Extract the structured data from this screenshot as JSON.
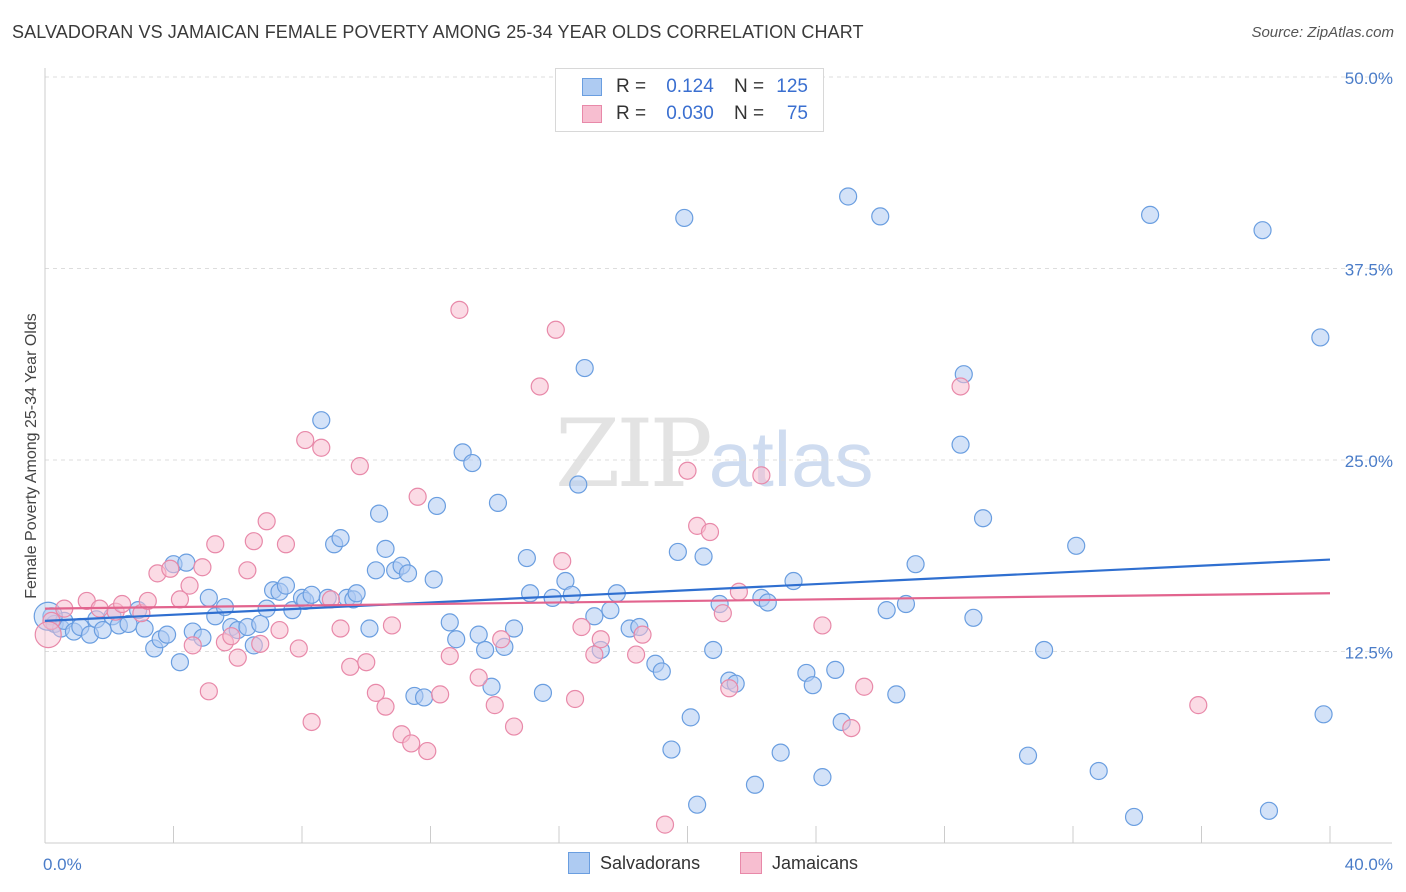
{
  "title": "SALVADORAN VS JAMAICAN FEMALE POVERTY AMONG 25-34 YEAR OLDS CORRELATION CHART",
  "source": "Source: ZipAtlas.com",
  "watermark": {
    "zip": "ZIP",
    "atlas": "atlas"
  },
  "legend": {
    "rows": [
      {
        "r_label": "R =",
        "r_value": "0.124",
        "n_label": "N =",
        "n_value": "125"
      },
      {
        "r_label": "R =",
        "r_value": "0.030",
        "n_label": "N =",
        "n_value": "75"
      }
    ]
  },
  "bottom_legend": {
    "salvadorans": "Salvadorans",
    "jamaicans": "Jamaicans"
  },
  "colors": {
    "salvadorans_fill": "#aecbf2",
    "salvadorans_stroke": "#6a9ee0",
    "salvadorans_line": "#2f6fd0",
    "jamaicans_fill": "#f7bed0",
    "jamaicans_stroke": "#e889a9",
    "jamaicans_line": "#e2648e",
    "tick": "#4a7cc8",
    "grid": "#dddddd"
  },
  "chart_data": {
    "type": "scatter",
    "title": "SALVADORAN VS JAMAICAN FEMALE POVERTY AMONG 25-34 YEAR OLDS CORRELATION CHART",
    "xlabel": "",
    "ylabel": "Female Poverty Among 25-34 Year Olds",
    "xlim": [
      0,
      40
    ],
    "ylim": [
      0,
      50
    ],
    "x_tick_labels": [
      "0.0%",
      "40.0%"
    ],
    "y_ticks": [
      12.5,
      25.0,
      37.5,
      50.0
    ],
    "y_tick_labels": [
      "12.5%",
      "25.0%",
      "37.5%",
      "50.0%"
    ],
    "grid": true,
    "legend_position": "top-center",
    "series": [
      {
        "name": "Salvadorans",
        "trend": {
          "x": [
            0,
            40
          ],
          "y": [
            14.5,
            18.5
          ]
        },
        "points": [
          [
            0.2,
            14.8
          ],
          [
            0.3,
            14.3
          ],
          [
            0.5,
            14.0
          ],
          [
            0.6,
            14.5
          ],
          [
            0.9,
            13.8
          ],
          [
            1.1,
            14.1
          ],
          [
            1.4,
            13.6
          ],
          [
            1.6,
            14.6
          ],
          [
            1.8,
            13.9
          ],
          [
            2.1,
            14.8
          ],
          [
            2.3,
            14.2
          ],
          [
            2.6,
            14.3
          ],
          [
            2.9,
            15.2
          ],
          [
            3.1,
            14.0
          ],
          [
            3.4,
            12.7
          ],
          [
            3.6,
            13.3
          ],
          [
            3.8,
            13.6
          ],
          [
            4.0,
            18.2
          ],
          [
            4.2,
            11.8
          ],
          [
            4.4,
            18.3
          ],
          [
            4.6,
            13.8
          ],
          [
            4.9,
            13.4
          ],
          [
            5.1,
            16.0
          ],
          [
            5.3,
            14.8
          ],
          [
            5.6,
            15.4
          ],
          [
            5.8,
            14.1
          ],
          [
            6.0,
            13.9
          ],
          [
            6.3,
            14.1
          ],
          [
            6.5,
            12.9
          ],
          [
            6.7,
            14.3
          ],
          [
            6.9,
            15.3
          ],
          [
            7.1,
            16.5
          ],
          [
            7.3,
            16.4
          ],
          [
            7.5,
            16.8
          ],
          [
            7.7,
            15.2
          ],
          [
            8.0,
            16.0
          ],
          [
            8.1,
            15.8
          ],
          [
            8.3,
            16.2
          ],
          [
            8.6,
            27.6
          ],
          [
            8.8,
            16.0
          ],
          [
            9.0,
            19.5
          ],
          [
            9.2,
            19.9
          ],
          [
            9.4,
            16.0
          ],
          [
            9.6,
            15.9
          ],
          [
            9.7,
            16.3
          ],
          [
            10.1,
            14.0
          ],
          [
            10.3,
            17.8
          ],
          [
            10.4,
            21.5
          ],
          [
            10.6,
            19.2
          ],
          [
            10.9,
            17.8
          ],
          [
            11.1,
            18.1
          ],
          [
            11.3,
            17.6
          ],
          [
            11.5,
            9.6
          ],
          [
            11.8,
            9.5
          ],
          [
            12.1,
            17.2
          ],
          [
            12.2,
            22.0
          ],
          [
            12.6,
            14.4
          ],
          [
            12.8,
            13.3
          ],
          [
            13.0,
            25.5
          ],
          [
            13.3,
            24.8
          ],
          [
            13.5,
            13.6
          ],
          [
            13.7,
            12.6
          ],
          [
            13.9,
            10.2
          ],
          [
            14.1,
            22.2
          ],
          [
            14.3,
            12.8
          ],
          [
            14.6,
            14.0
          ],
          [
            15.0,
            18.6
          ],
          [
            15.1,
            16.3
          ],
          [
            15.5,
            9.8
          ],
          [
            15.8,
            16.0
          ],
          [
            16.2,
            17.1
          ],
          [
            16.4,
            16.2
          ],
          [
            16.6,
            23.4
          ],
          [
            16.8,
            31.0
          ],
          [
            17.1,
            14.8
          ],
          [
            17.3,
            12.6
          ],
          [
            17.6,
            15.2
          ],
          [
            17.8,
            16.3
          ],
          [
            18.2,
            14.0
          ],
          [
            18.5,
            14.1
          ],
          [
            19.0,
            11.7
          ],
          [
            19.2,
            11.2
          ],
          [
            19.5,
            6.1
          ],
          [
            19.7,
            19.0
          ],
          [
            19.9,
            40.8
          ],
          [
            20.1,
            8.2
          ],
          [
            20.3,
            2.5
          ],
          [
            20.5,
            18.7
          ],
          [
            20.8,
            12.6
          ],
          [
            21.0,
            15.6
          ],
          [
            21.3,
            10.6
          ],
          [
            21.5,
            10.4
          ],
          [
            22.1,
            3.8
          ],
          [
            22.3,
            16.0
          ],
          [
            22.5,
            15.7
          ],
          [
            22.9,
            5.9
          ],
          [
            23.3,
            17.1
          ],
          [
            23.7,
            11.1
          ],
          [
            23.9,
            10.3
          ],
          [
            24.2,
            4.3
          ],
          [
            24.6,
            11.3
          ],
          [
            24.8,
            7.9
          ],
          [
            25.0,
            42.2
          ],
          [
            26.0,
            40.9
          ],
          [
            26.2,
            15.2
          ],
          [
            26.5,
            9.7
          ],
          [
            26.8,
            15.6
          ],
          [
            27.1,
            18.2
          ],
          [
            28.5,
            26.0
          ],
          [
            28.6,
            30.6
          ],
          [
            28.9,
            14.7
          ],
          [
            29.2,
            21.2
          ],
          [
            30.6,
            5.7
          ],
          [
            31.1,
            12.6
          ],
          [
            32.1,
            19.4
          ],
          [
            32.8,
            4.7
          ],
          [
            33.9,
            1.7
          ],
          [
            34.4,
            41.0
          ],
          [
            37.9,
            40.0
          ],
          [
            38.1,
            2.1
          ],
          [
            39.7,
            33.0
          ],
          [
            39.8,
            8.4
          ]
        ]
      },
      {
        "name": "Jamaicans",
        "trend": {
          "x": [
            0,
            40
          ],
          "y": [
            15.3,
            16.3
          ]
        },
        "points": [
          [
            0.2,
            14.5
          ],
          [
            0.6,
            15.3
          ],
          [
            1.3,
            15.8
          ],
          [
            1.7,
            15.3
          ],
          [
            2.2,
            15.1
          ],
          [
            2.4,
            15.6
          ],
          [
            3.0,
            15.0
          ],
          [
            3.2,
            15.8
          ],
          [
            3.5,
            17.6
          ],
          [
            3.9,
            17.9
          ],
          [
            4.2,
            15.9
          ],
          [
            4.5,
            16.8
          ],
          [
            4.6,
            12.9
          ],
          [
            4.9,
            18.0
          ],
          [
            5.1,
            9.9
          ],
          [
            5.3,
            19.5
          ],
          [
            5.6,
            13.1
          ],
          [
            5.8,
            13.5
          ],
          [
            6.0,
            12.1
          ],
          [
            6.3,
            17.8
          ],
          [
            6.5,
            19.7
          ],
          [
            6.7,
            13.0
          ],
          [
            6.9,
            21.0
          ],
          [
            7.3,
            13.9
          ],
          [
            7.5,
            19.5
          ],
          [
            7.9,
            12.7
          ],
          [
            8.1,
            26.3
          ],
          [
            8.3,
            7.9
          ],
          [
            8.6,
            25.8
          ],
          [
            8.9,
            15.9
          ],
          [
            9.2,
            14.0
          ],
          [
            9.5,
            11.5
          ],
          [
            9.8,
            24.6
          ],
          [
            10.0,
            11.8
          ],
          [
            10.3,
            9.8
          ],
          [
            10.6,
            8.9
          ],
          [
            10.8,
            14.2
          ],
          [
            11.1,
            7.1
          ],
          [
            11.4,
            6.5
          ],
          [
            11.6,
            22.6
          ],
          [
            11.9,
            6.0
          ],
          [
            12.3,
            9.7
          ],
          [
            12.6,
            12.2
          ],
          [
            12.9,
            34.8
          ],
          [
            13.5,
            10.8
          ],
          [
            14.0,
            9.0
          ],
          [
            14.2,
            13.3
          ],
          [
            14.6,
            7.6
          ],
          [
            15.4,
            29.8
          ],
          [
            15.9,
            33.5
          ],
          [
            16.1,
            18.4
          ],
          [
            16.5,
            9.4
          ],
          [
            16.7,
            14.1
          ],
          [
            17.1,
            12.3
          ],
          [
            17.3,
            13.3
          ],
          [
            18.4,
            12.3
          ],
          [
            18.6,
            13.6
          ],
          [
            19.3,
            1.2
          ],
          [
            20.0,
            24.3
          ],
          [
            20.3,
            20.7
          ],
          [
            20.7,
            20.3
          ],
          [
            21.1,
            15.0
          ],
          [
            21.3,
            10.1
          ],
          [
            21.6,
            16.4
          ],
          [
            22.3,
            24.0
          ],
          [
            24.2,
            14.2
          ],
          [
            25.1,
            7.5
          ],
          [
            25.5,
            10.2
          ],
          [
            28.5,
            29.8
          ],
          [
            35.9,
            9.0
          ]
        ]
      }
    ]
  }
}
